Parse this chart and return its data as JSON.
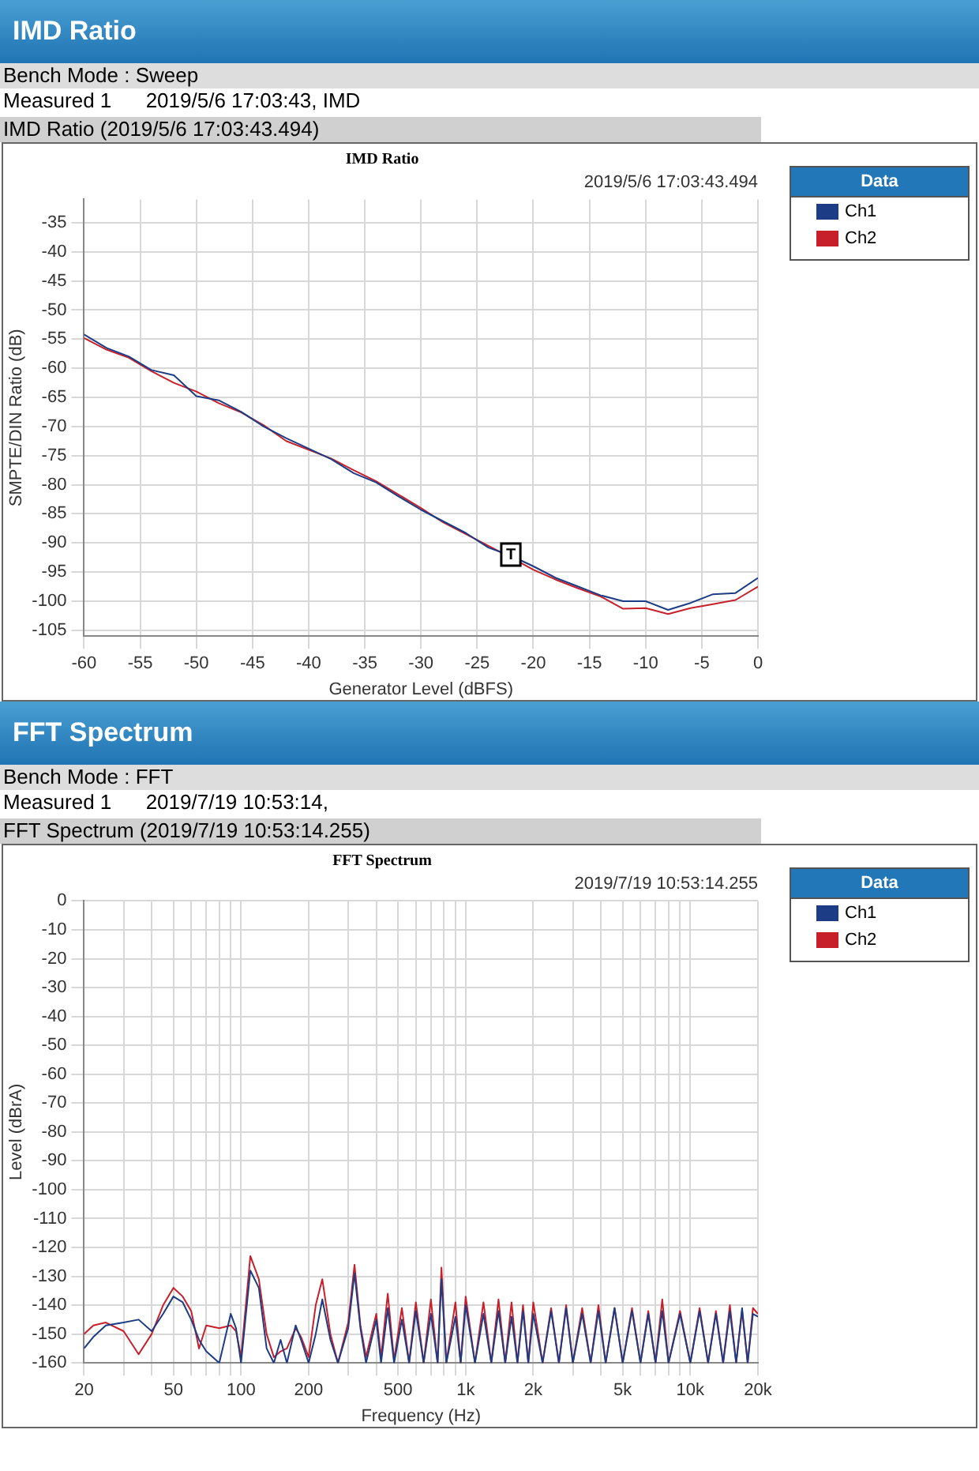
{
  "chart_data": [
    {
      "type": "line",
      "title": "IMD Ratio",
      "subtitle": "2019/5/6 17:03:43.494",
      "xlabel": "Generator Level (dBFS)",
      "ylabel": "SMPTE/DIN Ratio (dB)",
      "legend_title": "Data",
      "legend": "top right",
      "grid": true,
      "annotations": [
        "IMD Ratio",
        "Bench Mode : Sweep",
        "Measured 1      2019/5/6 17:03:43, IMD",
        "IMD Ratio (2019/5/6 17:03:43.494)",
        {
          "text": "T",
          "x": -22,
          "y": -92
        }
      ],
      "x": [
        -60,
        -58,
        -56,
        -54,
        -52,
        -50,
        -48,
        -46,
        -44,
        -42,
        -40,
        -38,
        -36,
        -34,
        -32,
        -30,
        -28,
        -26,
        -24,
        -22,
        -20,
        -18,
        -16,
        -14,
        -12,
        -10,
        -8,
        -6,
        -4,
        -2,
        0
      ],
      "xlim": [
        -60,
        0
      ],
      "xticks": [
        -60,
        -55,
        -50,
        -45,
        -40,
        -35,
        -30,
        -25,
        -20,
        -15,
        -10,
        -5,
        0
      ],
      "ylim": [
        -106,
        -31
      ],
      "yticks": [
        -35,
        -40,
        -45,
        -50,
        -55,
        -60,
        -65,
        -70,
        -75,
        -80,
        -85,
        -90,
        -95,
        -100,
        -105
      ],
      "series": [
        {
          "name": "Ch1",
          "color": "#1c3c85",
          "values": [
            -54.2,
            -56.5,
            -58,
            -60.3,
            -61.2,
            -64.8,
            -65.5,
            -67.5,
            -70,
            -72,
            -73.8,
            -75.6,
            -78,
            -79.6,
            -82,
            -84.3,
            -86.3,
            -88.3,
            -90.8,
            -92.2,
            -94,
            -96,
            -97.5,
            -99,
            -100,
            -100,
            -101.5,
            -100.3,
            -98.8,
            -98.6,
            -96
          ]
        },
        {
          "name": "Ch2",
          "color": "#c8202a",
          "values": [
            -54.8,
            -56.8,
            -58.2,
            -60.5,
            -62.5,
            -64,
            -66,
            -67.6,
            -69.8,
            -72.5,
            -74,
            -75.5,
            -77.5,
            -79.4,
            -81.7,
            -84,
            -86.5,
            -88.5,
            -90.5,
            -92.5,
            -94.6,
            -96.3,
            -97.8,
            -99.2,
            -101.3,
            -101.2,
            -102.2,
            -101.2,
            -100.5,
            -99.8,
            -97.5
          ]
        }
      ]
    },
    {
      "type": "line",
      "title": "FFT Spectrum",
      "subtitle": "2019/7/19 10:53:14.255",
      "xlabel": "Frequency (Hz)",
      "ylabel": "Level (dBrA)",
      "legend_title": "Data",
      "legend": "top right",
      "grid": true,
      "log": "x",
      "annotations": [
        "FFT Spectrum",
        "Bench Mode : FFT",
        "Measured 1      2019/7/19 10:53:14,",
        "FFT Spectrum (2019/7/19 10:53:14.255)"
      ],
      "x": [
        20,
        22,
        25,
        30,
        35,
        40,
        45,
        50,
        55,
        60,
        65,
        70,
        80,
        90,
        95,
        100,
        110,
        120,
        130,
        140,
        150,
        160,
        175,
        185,
        200,
        215,
        230,
        250,
        270,
        300,
        320,
        340,
        360,
        400,
        420,
        450,
        480,
        520,
        560,
        600,
        650,
        700,
        750,
        780,
        820,
        900,
        950,
        1000,
        1100,
        1200,
        1300,
        1400,
        1500,
        1600,
        1700,
        1800,
        1900,
        2000,
        2200,
        2400,
        2600,
        2800,
        3000,
        3300,
        3600,
        3900,
        4200,
        4600,
        5000,
        5500,
        6000,
        6500,
        7000,
        7500,
        8000,
        9000,
        10000,
        11000,
        12000,
        13000,
        14000,
        15000,
        16000,
        17000,
        18000,
        19000,
        20000
      ],
      "xlim": [
        20,
        20000
      ],
      "xticks": [
        20,
        {
          "value": 30,
          "label": null
        },
        {
          "value": 40,
          "label": null
        },
        50,
        {
          "value": 60,
          "label": null
        },
        {
          "value": 70,
          "label": null
        },
        {
          "value": 80,
          "label": null
        },
        {
          "value": 90,
          "label": null
        },
        100,
        200,
        {
          "value": 300,
          "label": null
        },
        {
          "value": 400,
          "label": null
        },
        500,
        {
          "value": 600,
          "label": null
        },
        {
          "value": 700,
          "label": null
        },
        {
          "value": 800,
          "label": null
        },
        {
          "value": 900,
          "label": null
        },
        {
          "value": 1000,
          "label": "1k"
        },
        {
          "value": 2000,
          "label": "2k"
        },
        {
          "value": 3000,
          "label": null
        },
        {
          "value": 4000,
          "label": null
        },
        {
          "value": 5000,
          "label": "5k"
        },
        {
          "value": 6000,
          "label": null
        },
        {
          "value": 7000,
          "label": null
        },
        {
          "value": 8000,
          "label": null
        },
        {
          "value": 9000,
          "label": null
        },
        {
          "value": 10000,
          "label": "10k"
        },
        {
          "value": 20000,
          "label": "20k"
        }
      ],
      "ylim": [
        -160,
        0
      ],
      "yticks": [
        0,
        -10,
        -20,
        -30,
        -40,
        -50,
        -60,
        -70,
        -80,
        -90,
        -100,
        -110,
        -120,
        -130,
        -140,
        -150,
        -160
      ],
      "series": [
        {
          "name": "Ch1",
          "color": "#1c3c85",
          "values": [
            -155,
            -151,
            -147,
            -146,
            -145,
            -149,
            -143,
            -137,
            -139,
            -145,
            -152,
            -156,
            -160,
            -143,
            -148,
            -160,
            -128,
            -134,
            -155,
            -160,
            -152,
            -160,
            -147,
            -152,
            -160,
            -150,
            -138,
            -152,
            -160,
            -148,
            -129,
            -148,
            -160,
            -145,
            -160,
            -141,
            -160,
            -145,
            -160,
            -142,
            -160,
            -143,
            -160,
            -131,
            -160,
            -144,
            -160,
            -140,
            -160,
            -143,
            -160,
            -142,
            -160,
            -144,
            -160,
            -142,
            -160,
            -143,
            -160,
            -142,
            -160,
            -141,
            -160,
            -143,
            -160,
            -142,
            -160,
            -141,
            -160,
            -142,
            -160,
            -143,
            -160,
            -142,
            -160,
            -143,
            -160,
            -142,
            -160,
            -143,
            -160,
            -142,
            -160,
            -141,
            -160,
            -143,
            -144
          ]
        },
        {
          "name": "Ch2",
          "color": "#c8202a",
          "values": [
            -150,
            -147,
            -146,
            -149,
            -157,
            -150,
            -140,
            -134,
            -137,
            -142,
            -155,
            -147,
            -148,
            -147,
            -149,
            -158,
            -123,
            -131,
            -150,
            -158,
            -156,
            -155,
            -148,
            -151,
            -158,
            -140,
            -131,
            -150,
            -160,
            -146,
            -126,
            -147,
            -158,
            -143,
            -158,
            -136,
            -159,
            -141,
            -160,
            -139,
            -160,
            -138,
            -160,
            -127,
            -160,
            -139,
            -160,
            -137,
            -160,
            -139,
            -160,
            -138,
            -160,
            -139,
            -160,
            -140,
            -160,
            -139,
            -160,
            -141,
            -160,
            -140,
            -160,
            -141,
            -160,
            -140,
            -160,
            -141,
            -160,
            -141,
            -160,
            -142,
            -160,
            -138,
            -160,
            -142,
            -160,
            -141,
            -160,
            -142,
            -160,
            -140,
            -160,
            -142,
            -160,
            -141,
            -143
          ]
        }
      ]
    }
  ]
}
